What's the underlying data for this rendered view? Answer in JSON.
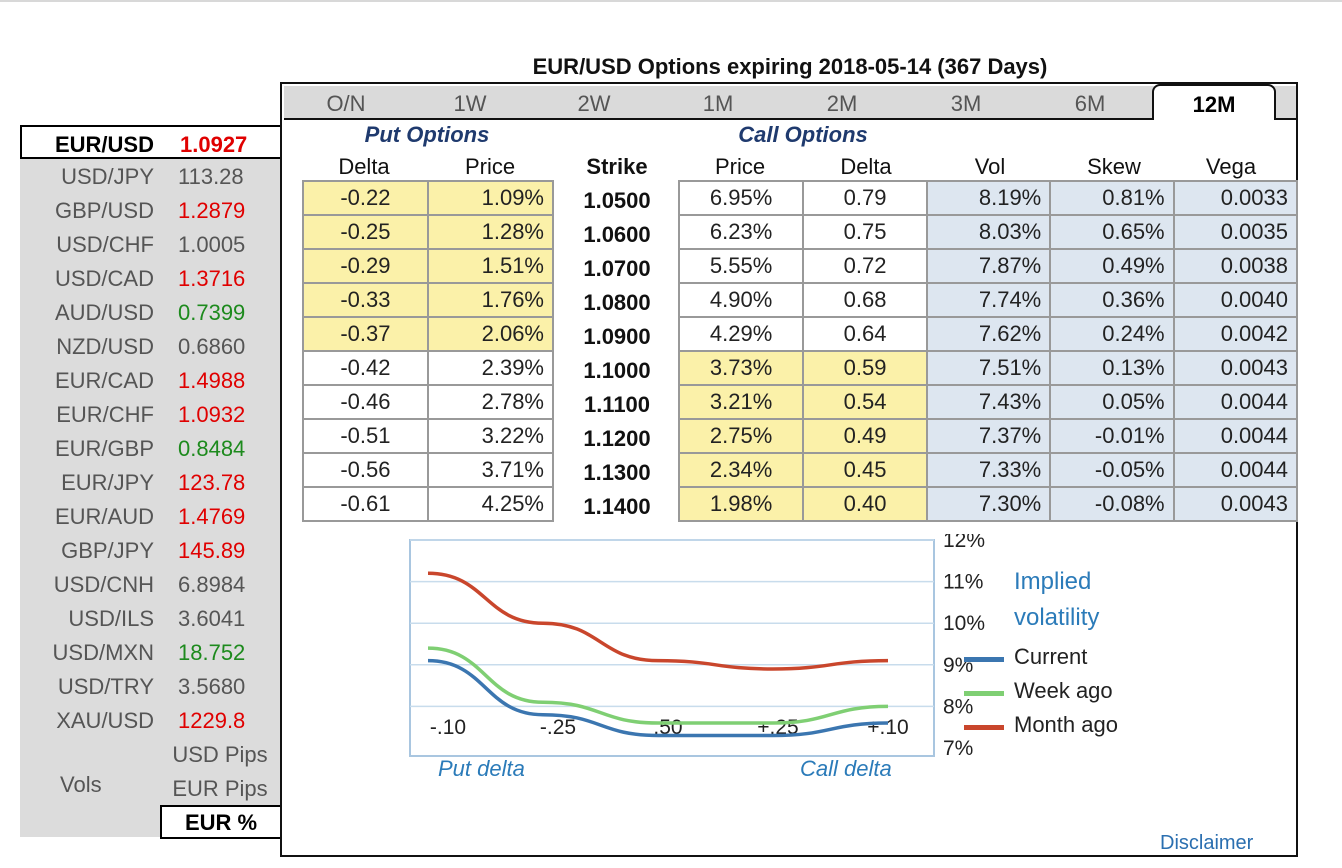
{
  "title": "EUR/USD Options expiring 2018-05-14 (367 Days)",
  "pairs": [
    {
      "name": "EUR/USD",
      "value": "1.0927",
      "color": "#e00000",
      "active": true
    },
    {
      "name": "USD/JPY",
      "value": "113.28",
      "color": "#555555"
    },
    {
      "name": "GBP/USD",
      "value": "1.2879",
      "color": "#e00000"
    },
    {
      "name": "USD/CHF",
      "value": "1.0005",
      "color": "#555555"
    },
    {
      "name": "USD/CAD",
      "value": "1.3716",
      "color": "#e00000"
    },
    {
      "name": "AUD/USD",
      "value": "0.7399",
      "color": "#1d8a1d"
    },
    {
      "name": "NZD/USD",
      "value": "0.6860",
      "color": "#555555"
    },
    {
      "name": "EUR/CAD",
      "value": "1.4988",
      "color": "#e00000"
    },
    {
      "name": "EUR/CHF",
      "value": "1.0932",
      "color": "#e00000"
    },
    {
      "name": "EUR/GBP",
      "value": "0.8484",
      "color": "#1d8a1d"
    },
    {
      "name": "EUR/JPY",
      "value": "123.78",
      "color": "#e00000"
    },
    {
      "name": "EUR/AUD",
      "value": "1.4769",
      "color": "#e00000"
    },
    {
      "name": "GBP/JPY",
      "value": "145.89",
      "color": "#e00000"
    },
    {
      "name": "USD/CNH",
      "value": "6.8984",
      "color": "#555555"
    },
    {
      "name": "USD/ILS",
      "value": "3.6041",
      "color": "#555555"
    },
    {
      "name": "USD/MXN",
      "value": "18.752",
      "color": "#1d8a1d"
    },
    {
      "name": "USD/TRY",
      "value": "3.5680",
      "color": "#555555"
    },
    {
      "name": "XAU/USD",
      "value": "1229.8",
      "color": "#e00000"
    }
  ],
  "vols": {
    "label": "Vols",
    "options": [
      "USD Pips",
      "EUR Pips",
      "EUR %"
    ],
    "active": "EUR %"
  },
  "tabs": [
    "O/N",
    "1W",
    "2W",
    "1M",
    "2M",
    "3M",
    "6M",
    "12M"
  ],
  "active_tab": "12M",
  "sections": {
    "put": "Put Options",
    "call": "Call Options"
  },
  "columns": {
    "put_delta": "Delta",
    "put_price": "Price",
    "strike": "Strike",
    "call_price": "Price",
    "call_delta": "Delta",
    "vol": "Vol",
    "skew": "Skew",
    "vega": "Vega"
  },
  "rows": [
    {
      "put_delta": "-0.22",
      "put_price": "1.09%",
      "strike": "1.0500",
      "call_price": "6.95%",
      "call_delta": "0.79",
      "vol": "8.19%",
      "skew": "0.81%",
      "vega": "0.0033",
      "put_hl": true,
      "call_hl": false
    },
    {
      "put_delta": "-0.25",
      "put_price": "1.28%",
      "strike": "1.0600",
      "call_price": "6.23%",
      "call_delta": "0.75",
      "vol": "8.03%",
      "skew": "0.65%",
      "vega": "0.0035",
      "put_hl": true,
      "call_hl": false
    },
    {
      "put_delta": "-0.29",
      "put_price": "1.51%",
      "strike": "1.0700",
      "call_price": "5.55%",
      "call_delta": "0.72",
      "vol": "7.87%",
      "skew": "0.49%",
      "vega": "0.0038",
      "put_hl": true,
      "call_hl": false
    },
    {
      "put_delta": "-0.33",
      "put_price": "1.76%",
      "strike": "1.0800",
      "call_price": "4.90%",
      "call_delta": "0.68",
      "vol": "7.74%",
      "skew": "0.36%",
      "vega": "0.0040",
      "put_hl": true,
      "call_hl": false
    },
    {
      "put_delta": "-0.37",
      "put_price": "2.06%",
      "strike": "1.0900",
      "call_price": "4.29%",
      "call_delta": "0.64",
      "vol": "7.62%",
      "skew": "0.24%",
      "vega": "0.0042",
      "put_hl": true,
      "call_hl": false
    },
    {
      "put_delta": "-0.42",
      "put_price": "2.39%",
      "strike": "1.1000",
      "call_price": "3.73%",
      "call_delta": "0.59",
      "vol": "7.51%",
      "skew": "0.13%",
      "vega": "0.0043",
      "put_hl": false,
      "call_hl": true
    },
    {
      "put_delta": "-0.46",
      "put_price": "2.78%",
      "strike": "1.1100",
      "call_price": "3.21%",
      "call_delta": "0.54",
      "vol": "7.43%",
      "skew": "0.05%",
      "vega": "0.0044",
      "put_hl": false,
      "call_hl": true
    },
    {
      "put_delta": "-0.51",
      "put_price": "3.22%",
      "strike": "1.1200",
      "call_price": "2.75%",
      "call_delta": "0.49",
      "vol": "7.37%",
      "skew": "-0.01%",
      "vega": "0.0044",
      "put_hl": false,
      "call_hl": true
    },
    {
      "put_delta": "-0.56",
      "put_price": "3.71%",
      "strike": "1.1300",
      "call_price": "2.34%",
      "call_delta": "0.45",
      "vol": "7.33%",
      "skew": "-0.05%",
      "vega": "0.0044",
      "put_hl": false,
      "call_hl": true
    },
    {
      "put_delta": "-0.61",
      "put_price": "4.25%",
      "strike": "1.1400",
      "call_price": "1.98%",
      "call_delta": "0.40",
      "vol": "7.30%",
      "skew": "-0.08%",
      "vega": "0.0043",
      "put_hl": false,
      "call_hl": true
    }
  ],
  "colors": {
    "highlight": "#fbf1a9",
    "vol_bg": "#dde6f0",
    "current": "#3b76b0",
    "week_ago": "#7fcf73",
    "month_ago": "#c9462c"
  },
  "chart_data": {
    "type": "line",
    "x": [
      "-.10",
      "-.25",
      ".50",
      "+.25",
      "+.10"
    ],
    "xlabel_left": "Put delta",
    "xlabel_right": "Call delta",
    "yticks": [
      "12%",
      "11%",
      "10%",
      "9%",
      "8%",
      "7%"
    ],
    "ylim": [
      7,
      12
    ],
    "title": "Implied volatility",
    "series": [
      {
        "name": "Current",
        "color": "#3b76b0",
        "values": [
          9.1,
          7.8,
          7.3,
          7.3,
          7.6
        ]
      },
      {
        "name": "Week ago",
        "color": "#7fcf73",
        "values": [
          9.4,
          8.1,
          7.6,
          7.6,
          8.0
        ]
      },
      {
        "name": "Month ago",
        "color": "#c9462c",
        "values": [
          11.2,
          10.0,
          9.1,
          8.9,
          9.1
        ]
      }
    ]
  },
  "disclaimer": "Disclaimer"
}
